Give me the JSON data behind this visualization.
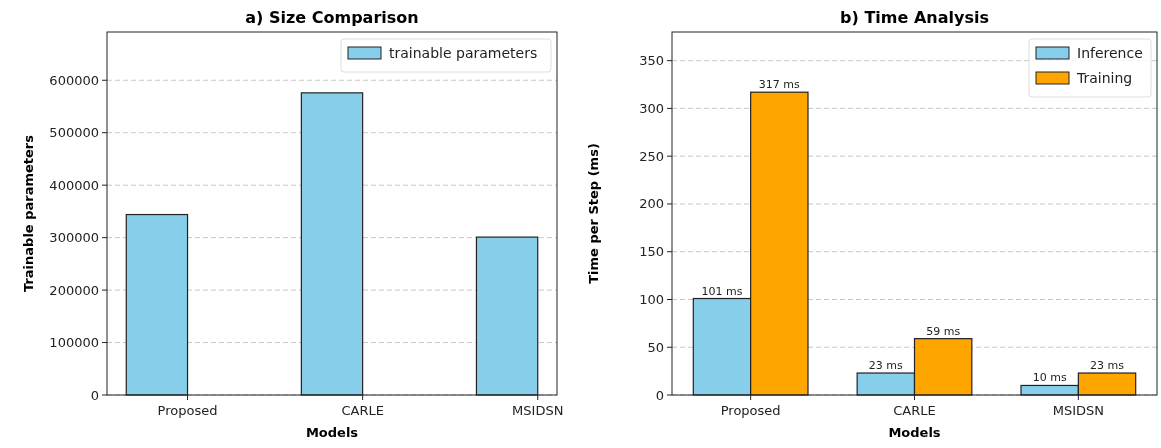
{
  "chart_data": [
    {
      "type": "bar",
      "title": "a) Size Comparison",
      "xlabel": "Models",
      "ylabel": "Trainable parameters",
      "categories": [
        "Proposed",
        "CARLE",
        "MSIDSN"
      ],
      "series": [
        {
          "name": "trainable parameters",
          "color": "#87ceeb",
          "values": [
            344000,
            576000,
            301000
          ]
        }
      ],
      "ylim": [
        0,
        692000
      ],
      "yticks": [
        0,
        100000,
        200000,
        300000,
        400000,
        500000,
        600000
      ],
      "grid": "y",
      "legend": "top right"
    },
    {
      "type": "bar",
      "title": "b) Time Analysis",
      "xlabel": "Models",
      "ylabel": "Time per Step (ms)",
      "categories": [
        "Proposed",
        "CARLE",
        "MSIDSN"
      ],
      "series": [
        {
          "name": "Inference",
          "color": "#87ceeb",
          "values": [
            101,
            23,
            10
          ],
          "value_labels": [
            "101 ms",
            "23 ms",
            "10 ms"
          ]
        },
        {
          "name": "Training",
          "color": "#ffa500",
          "values": [
            317,
            59,
            23
          ],
          "value_labels": [
            "317 ms",
            "59 ms",
            "23 ms"
          ]
        }
      ],
      "ylim": [
        0,
        380
      ],
      "yticks": [
        0,
        50,
        100,
        150,
        200,
        250,
        300,
        350
      ],
      "grid": "y",
      "legend": "top right"
    }
  ]
}
